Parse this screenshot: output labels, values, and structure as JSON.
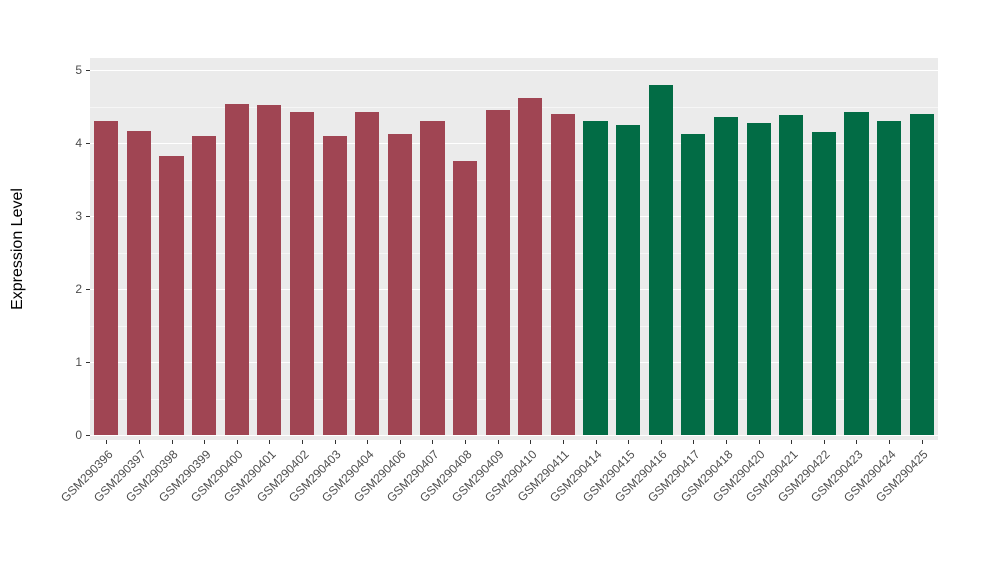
{
  "chart_data": {
    "type": "bar",
    "title": "",
    "xlabel": "",
    "ylabel": "Expression Level",
    "ylim": [
      0,
      5
    ],
    "yticks": [
      "0",
      "1",
      "2",
      "3",
      "4",
      "5"
    ],
    "grid": "major and minor horizontal white gridlines on gray panel",
    "legend": "none",
    "panel_background": "#EBEBEB",
    "gridline_color": "#FFFFFF",
    "group_colors": {
      "left_group": "#A04553",
      "right_group": "#026C45"
    },
    "categories": [
      "GSM290396",
      "GSM290397",
      "GSM290398",
      "GSM290399",
      "GSM290400",
      "GSM290401",
      "GSM290402",
      "GSM290403",
      "GSM290404",
      "GSM290406",
      "GSM290407",
      "GSM290408",
      "GSM290409",
      "GSM290410",
      "GSM290411",
      "GSM290414",
      "GSM290415",
      "GSM290416",
      "GSM290417",
      "GSM290418",
      "GSM290420",
      "GSM290421",
      "GSM290422",
      "GSM290423",
      "GSM290424",
      "GSM290425"
    ],
    "values": [
      4.3,
      4.17,
      3.82,
      4.1,
      4.53,
      4.52,
      4.42,
      4.1,
      4.42,
      4.13,
      4.3,
      3.76,
      4.45,
      4.62,
      4.4,
      4.3,
      4.25,
      4.8,
      4.12,
      4.35,
      4.27,
      4.38,
      4.15,
      4.42,
      4.3,
      4.4
    ],
    "bar_colors": [
      "#A04553",
      "#A04553",
      "#A04553",
      "#A04553",
      "#A04553",
      "#A04553",
      "#A04553",
      "#A04553",
      "#A04553",
      "#A04553",
      "#A04553",
      "#A04553",
      "#A04553",
      "#A04553",
      "#A04553",
      "#026C45",
      "#026C45",
      "#026C45",
      "#026C45",
      "#026C45",
      "#026C45",
      "#026C45",
      "#026C45",
      "#026C45",
      "#026C45",
      "#026C45"
    ]
  }
}
